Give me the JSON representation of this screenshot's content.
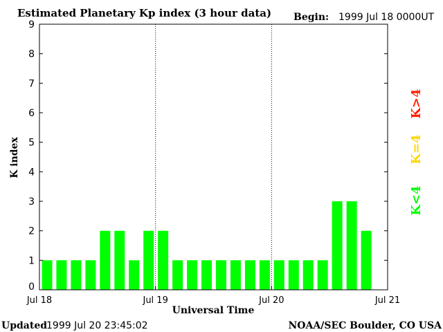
{
  "chart_data": {
    "type": "bar",
    "title": "Estimated Planetary Kp index (3 hour data)",
    "begin_label": "Begin:",
    "begin_value": "1999 Jul 18 0000UT",
    "xlabel": "Universal Time",
    "ylabel": "K index",
    "ylim": [
      0,
      9
    ],
    "y_ticks": [
      "0",
      "1",
      "2",
      "3",
      "4",
      "5",
      "6",
      "7",
      "8",
      "9"
    ],
    "x_ticks": [
      "Jul 18",
      "Jul 19",
      "Jul 20",
      "Jul 21"
    ],
    "day_separators": [
      "Jul 19",
      "Jul 20"
    ],
    "bars_per_day": 8,
    "values": [
      1,
      1,
      1,
      1,
      2,
      2,
      1,
      2,
      2,
      1,
      1,
      1,
      1,
      1,
      1,
      1,
      1,
      1,
      1,
      1,
      3,
      3,
      2
    ],
    "legend": [
      {
        "label": "K<4",
        "color": "#00ff00"
      },
      {
        "label": "K=4",
        "color": "#ffd700"
      },
      {
        "label": "K>4",
        "color": "#ff2000"
      }
    ],
    "colors": {
      "low": "#00ff00",
      "equal": "#ffd700",
      "high": "#ff2000"
    }
  },
  "footer": {
    "updated_label": "Updated",
    "updated_value": "1999 Jul 20 23:45:02",
    "credit": "NOAA/SEC Boulder, CO USA"
  }
}
